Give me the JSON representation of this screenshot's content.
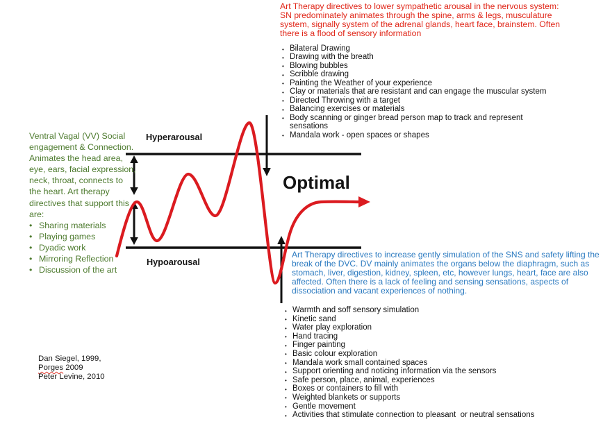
{
  "colors": {
    "red_text": "#e02618",
    "green_text": "#4e7b2f",
    "blue_text": "#2b7ac0",
    "black_text": "#141414",
    "curve_red": "#db1b20"
  },
  "sns_section": {
    "paragraph_lines": [
      "Art Therapy directives to lower sympathetic arousal in the nervous system:",
      "SN predominately animates through the spine, arms & legs, musculature",
      "system, signally system of the adrenal glands, heart face, brainstem. Often",
      "there is a flood of sensory information"
    ],
    "bullets": [
      "Bilateral Drawing",
      "Drawing with the breath",
      "Blowing bubbles",
      "Scribble drawing",
      "Painting the Weather of your experience",
      "Clay or materials that are resistant and can engage the muscular system",
      "Directed Throwing with a target",
      "Balancing exercises or materials",
      "Body scanning or ginger bread person map to track and represent\nsensations",
      "Mandala work - open spaces or shapes"
    ]
  },
  "ventral_vagal_section": {
    "paragraph_lines": [
      "Ventral Vagal (VV) Social",
      "engagement & Connection.",
      "Animates the head area,",
      "eye, ears, facial expression,",
      "neck, throat, connects to",
      "the heart. Art therapy",
      "directives that support this",
      "are:"
    ],
    "bullets": [
      "Sharing materials",
      "Playing games",
      "Dyadic work",
      "Mirroring Reflection",
      "Discussion of the art"
    ]
  },
  "diagram": {
    "hyperarousal_label": "Hyperarousal",
    "hypoarousal_label": "Hypoarousal",
    "optimal_label": "Optimal"
  },
  "dorsal_vagal_section": {
    "paragraph_lines": [
      "Art Therapy directives to increase gently simulation of the SNS and safety lifting the",
      "break of the DVC. DV mainly animates the organs below the diaphragm, such as",
      "stomach, liver, digestion, kidney, spleen, etc, however lungs, heart, face are also",
      "affected. Often there is a lack of feeling and sensing sensations, aspects of",
      "dissociation and vacant experiences of nothing."
    ],
    "bullets": [
      "Warmth and soff sensory simulation",
      "Kinetic sand",
      "Water play exploration",
      "Hand tracing",
      "Finger painting",
      "Basic colour exploration",
      "Mandala work small contained spaces",
      "Support orienting and noticing information via the sensors",
      "Safe person, place, animal, experiences",
      "Boxes or containers to fill with",
      "Weighted blankets or supports",
      "Gentle movement",
      "Activities that stimulate connection to pleasant  or neutral sensations"
    ]
  },
  "citations": {
    "line1": "Dan Siegel, 1999,",
    "line2_word": "Porges",
    "line2_rest": " 2009",
    "line3": "Peter Levine, 2010"
  }
}
